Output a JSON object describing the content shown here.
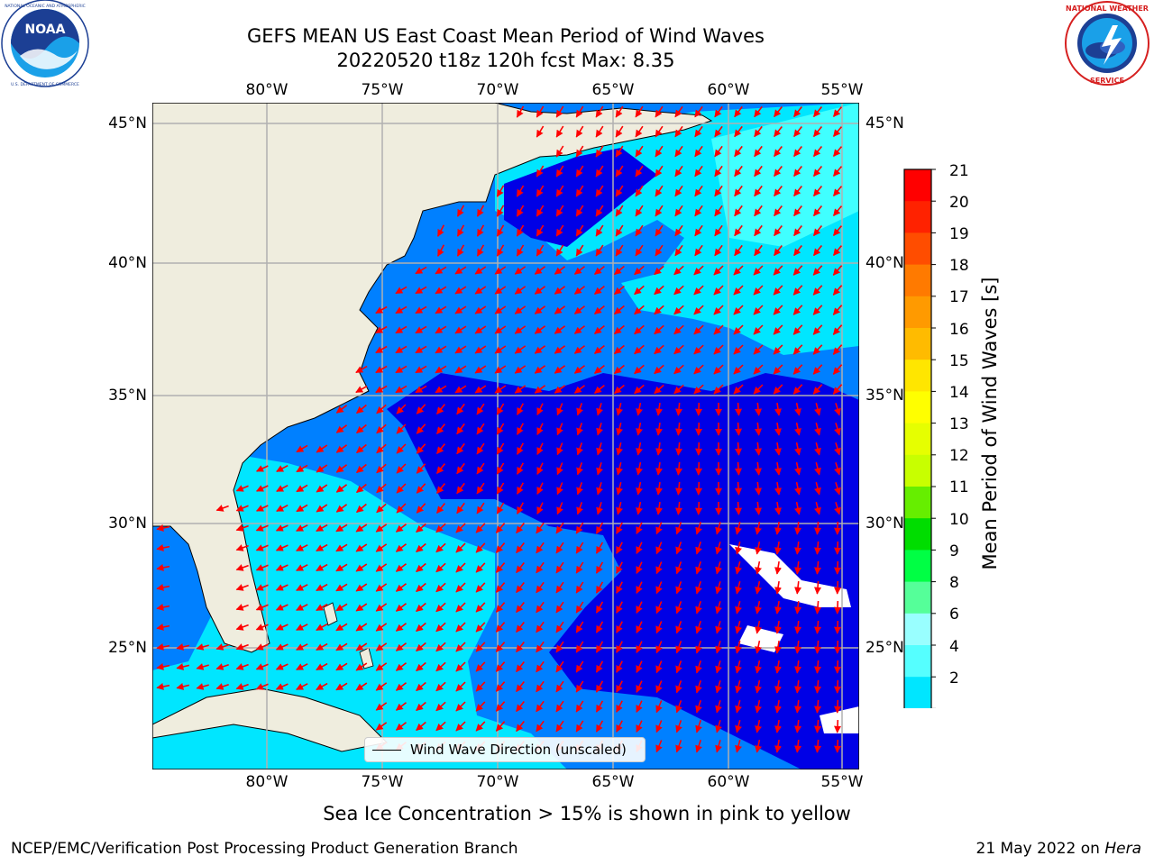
{
  "header": {
    "title_line1": "GEFS MEAN US East Coast Mean Period of Wind Waves",
    "title_line2": "20220520 t18z 120h fcst   Max: 8.35"
  },
  "logos": {
    "left": "NOAA",
    "left_ring_text": "NATIONAL OCEANIC AND ATMOSPHERIC ADMINISTRATION · U.S. DEPARTMENT OF COMMERCE",
    "right_ring_text": "NATIONAL WEATHER SERVICE"
  },
  "map": {
    "lon_labels": [
      "80°W",
      "75°W",
      "70°W",
      "65°W",
      "60°W",
      "55°W"
    ],
    "lat_labels": [
      "45°N",
      "40°N",
      "35°N",
      "30°N",
      "25°N"
    ],
    "colors": {
      "land": "#efedde",
      "ocean_2_4": "#0080ff",
      "ocean_lt2": "#0000e6",
      "ocean_4_6": "#00e6ff",
      "ocean_6_8": "#40ffff",
      "arrow": "#ff0000",
      "grid": "#b0b0b0"
    }
  },
  "legend": {
    "label": "Wind Wave Direction (unscaled)"
  },
  "colorbar": {
    "label": "Mean Period of Wind Waves [s]",
    "ticks": [
      "21",
      "20",
      "19",
      "18",
      "17",
      "16",
      "15",
      "14",
      "13",
      "12",
      "11",
      "10",
      "9",
      "8",
      "6",
      "4",
      "2"
    ],
    "colors_top_to_bottom": [
      "#ff0000",
      "#ff2200",
      "#ff4d00",
      "#ff7a00",
      "#ff9a00",
      "#ffbb00",
      "#ffe600",
      "#ffff00",
      "#e6ff00",
      "#c8ff00",
      "#66ee00",
      "#00dd00",
      "#00ff44",
      "#55ff99",
      "#99ffff",
      "#55ffff",
      "#00e6ff",
      "#0080ff"
    ]
  },
  "notes": {
    "sea_ice": "Sea Ice Concentration > 15% is shown in pink to yellow"
  },
  "footer": {
    "left": "NCEP/EMC/Verification Post Processing Product Generation Branch",
    "right_date": "21 May 2022 on ",
    "right_host": "Hera"
  }
}
